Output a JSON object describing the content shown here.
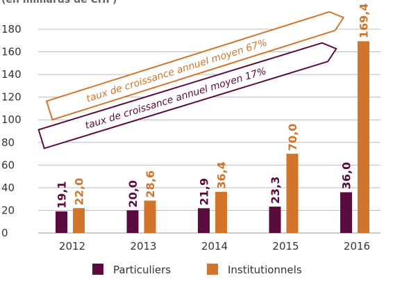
{
  "chart_data": {
    "type": "bar",
    "subtitle": "(en milliards de CHF)",
    "categories": [
      "2012",
      "2013",
      "2014",
      "2015",
      "2016"
    ],
    "series": [
      {
        "name": "Particuliers",
        "color": "#5a0b3e",
        "values": [
          19.1,
          20.0,
          21.9,
          23.3,
          36.0
        ],
        "value_labels": [
          "19,1",
          "20,0",
          "21,9",
          "23,3",
          "36,0"
        ]
      },
      {
        "name": "Institutionnels",
        "color": "#d2742a",
        "values": [
          22.0,
          28.6,
          36.4,
          70.0,
          169.4
        ],
        "value_labels": [
          "22,0",
          "28,6",
          "36,4",
          "70,0",
          "169,4"
        ]
      }
    ],
    "annotations": [
      "taux de croissance annuel moyen 67%",
      "taux de croissance annuel moyen 17%"
    ],
    "ylim": [
      0,
      180
    ],
    "yticks": [
      0,
      20,
      40,
      60,
      80,
      100,
      120,
      140,
      160,
      180
    ],
    "grid": true,
    "legend": "bottom"
  }
}
